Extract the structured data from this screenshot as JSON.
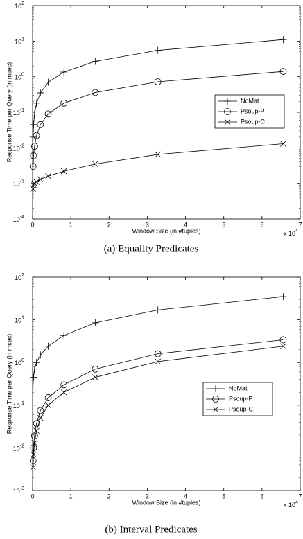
{
  "chart_data": [
    {
      "type": "line",
      "caption": "(a) Equality Predicates",
      "xlabel": "Window Size (in #tuples)",
      "ylabel": "Response Time per Query (in msec)",
      "x_multiplier": "x 10",
      "x_multiplier_exp": "4",
      "x": [
        128,
        256,
        512,
        1024,
        2048,
        4096,
        8192,
        16384,
        32768,
        65536
      ],
      "series": [
        {
          "name": "NoMat",
          "color": "#000000",
          "marker": "plus",
          "values": [
            0.02,
            0.045,
            0.09,
            0.18,
            0.35,
            0.7,
            1.35,
            2.7,
            5.5,
            11
          ]
        },
        {
          "name": "Psoup-P",
          "color": "#000000",
          "marker": "circle",
          "values": [
            0.003,
            0.006,
            0.011,
            0.022,
            0.045,
            0.09,
            0.18,
            0.36,
            0.72,
            1.4
          ]
        },
        {
          "name": "Psoup-C",
          "color": "#000000",
          "marker": "x",
          "values": [
            0.0007,
            0.0009,
            0.001,
            0.0011,
            0.0013,
            0.0016,
            0.0022,
            0.0035,
            0.0065,
            0.013
          ]
        }
      ],
      "xlim": [
        0,
        70000
      ],
      "xticks": [
        {
          "value": 0,
          "label": "0"
        },
        {
          "value": 10000,
          "label": "1"
        },
        {
          "value": 20000,
          "label": "2"
        },
        {
          "value": 30000,
          "label": "3"
        },
        {
          "value": 40000,
          "label": "4"
        },
        {
          "value": 50000,
          "label": "5"
        },
        {
          "value": 60000,
          "label": "6"
        },
        {
          "value": 70000,
          "label": "7"
        }
      ],
      "ylim": [
        0.0001,
        100
      ],
      "log_y": true,
      "yticks": [
        {
          "value": 0.0001,
          "label": "10",
          "exponent": "-4"
        },
        {
          "value": 0.001,
          "label": "10",
          "exponent": "-3"
        },
        {
          "value": 0.01,
          "label": "10",
          "exponent": "-2"
        },
        {
          "value": 0.1,
          "label": "10",
          "exponent": "-1"
        },
        {
          "value": 1,
          "label": "10",
          "exponent": "0"
        },
        {
          "value": 10,
          "label": "10",
          "exponent": "1"
        },
        {
          "value": 100,
          "label": "10",
          "exponent": "2"
        }
      ],
      "legend": "right"
    },
    {
      "type": "line",
      "caption": "(b) Interval Predicates",
      "xlabel": "Window Size (in #tuples)",
      "ylabel": "Response Time per Query (in msec)",
      "x_multiplier": "x 10",
      "x_multiplier_exp": "4",
      "x": [
        128,
        256,
        512,
        1024,
        2048,
        4096,
        8192,
        16384,
        32768,
        65536
      ],
      "series": [
        {
          "name": "NoMat",
          "color": "#000000",
          "marker": "plus",
          "values": [
            0.3,
            0.45,
            0.7,
            1.0,
            1.5,
            2.4,
            4.3,
            8.5,
            17,
            35
          ]
        },
        {
          "name": "Psoup-P",
          "color": "#000000",
          "marker": "circle",
          "values": [
            0.005,
            0.01,
            0.019,
            0.037,
            0.075,
            0.15,
            0.3,
            0.7,
            1.6,
            3.4
          ]
        },
        {
          "name": "Psoup-C",
          "color": "#000000",
          "marker": "x",
          "values": [
            0.0035,
            0.007,
            0.013,
            0.025,
            0.05,
            0.1,
            0.2,
            0.45,
            1.05,
            2.4
          ]
        }
      ],
      "xlim": [
        0,
        70000
      ],
      "xticks": [
        {
          "value": 0,
          "label": "0"
        },
        {
          "value": 10000,
          "label": "1"
        },
        {
          "value": 20000,
          "label": "2"
        },
        {
          "value": 30000,
          "label": "3"
        },
        {
          "value": 40000,
          "label": "4"
        },
        {
          "value": 50000,
          "label": "5"
        },
        {
          "value": 60000,
          "label": "6"
        },
        {
          "value": 70000,
          "label": "7"
        }
      ],
      "ylim": [
        0.001,
        100
      ],
      "log_y": true,
      "yticks": [
        {
          "value": 0.001,
          "label": "10",
          "exponent": "-3"
        },
        {
          "value": 0.01,
          "label": "10",
          "exponent": "-2"
        },
        {
          "value": 0.1,
          "label": "10",
          "exponent": "-1"
        },
        {
          "value": 1,
          "label": "10",
          "exponent": "0"
        },
        {
          "value": 10,
          "label": "10",
          "exponent": "1"
        },
        {
          "value": 100,
          "label": "10",
          "exponent": "2"
        }
      ],
      "legend": "right"
    }
  ]
}
